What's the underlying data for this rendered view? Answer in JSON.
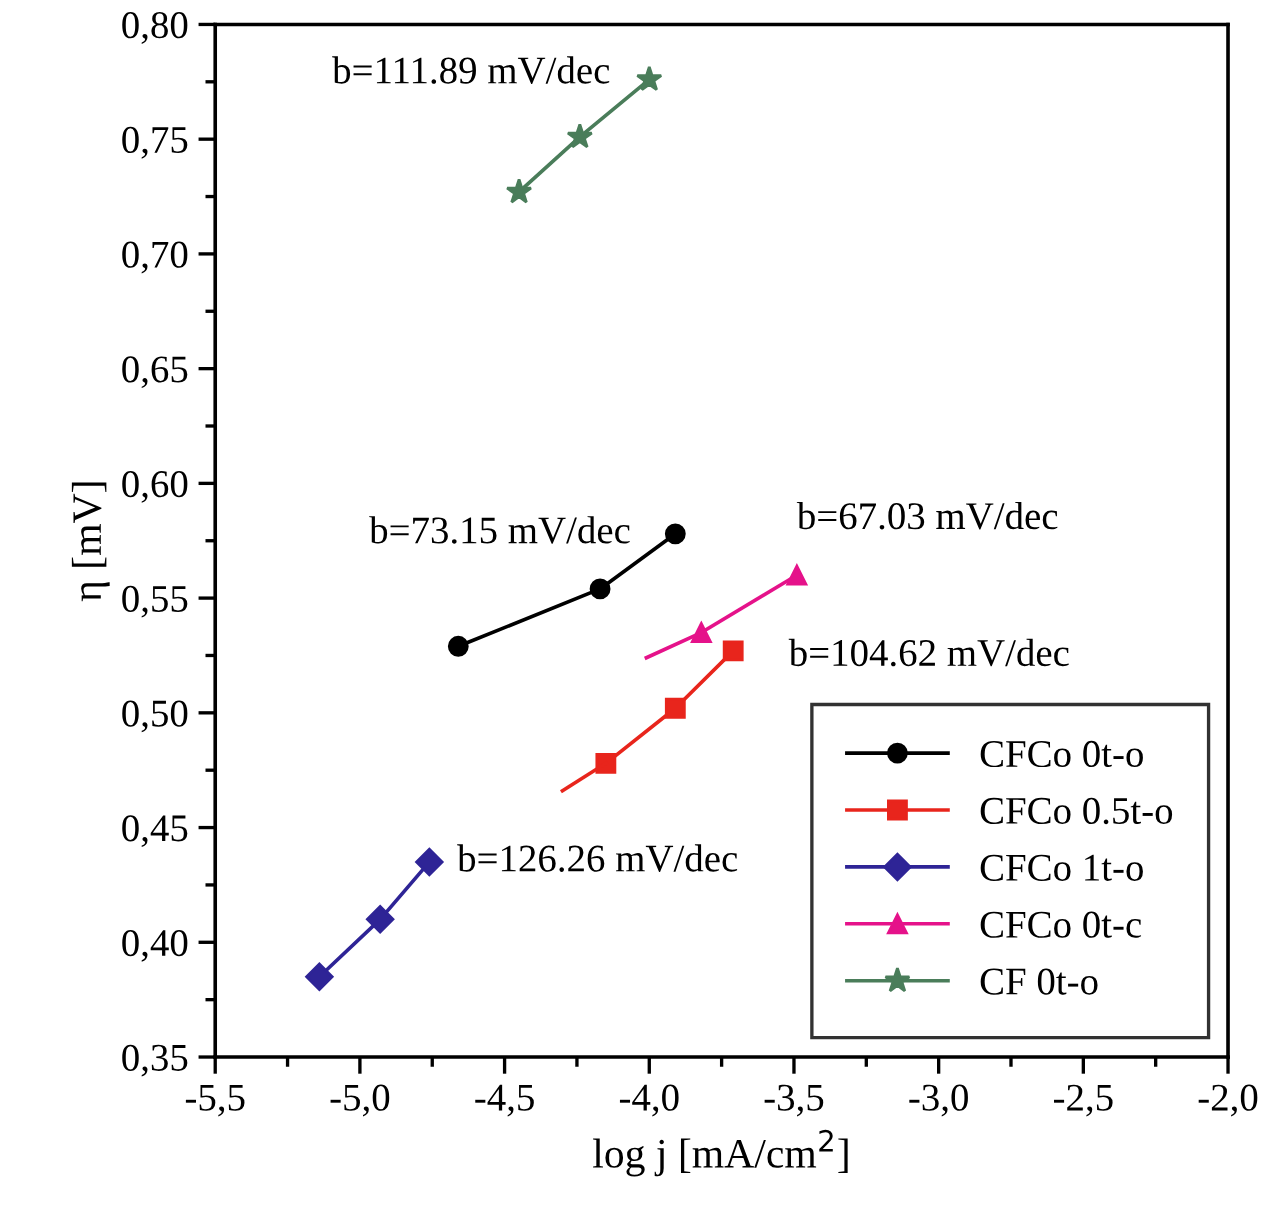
{
  "chart_data": {
    "type": "line",
    "xlabel": "log j [mA/cm$^{2}$]",
    "ylabel": "η [mV]",
    "xlim": [
      -5.5,
      -2.0
    ],
    "ylim": [
      0.35,
      0.8
    ],
    "xticks": [
      {
        "value": -5.5,
        "label": "-5,5"
      },
      {
        "value": -5.0,
        "label": "-5,0"
      },
      {
        "value": -4.5,
        "label": "-4,5"
      },
      {
        "value": -4.0,
        "label": "-4,0"
      },
      {
        "value": -3.5,
        "label": "-3,5"
      },
      {
        "value": -3.0,
        "label": "-3,0"
      },
      {
        "value": -2.5,
        "label": "-2,5"
      },
      {
        "value": -2.0,
        "label": "-2,0"
      }
    ],
    "yticks": [
      {
        "value": 0.35,
        "label": "0,35"
      },
      {
        "value": 0.4,
        "label": "0,40"
      },
      {
        "value": 0.45,
        "label": "0,45"
      },
      {
        "value": 0.5,
        "label": "0,50"
      },
      {
        "value": 0.55,
        "label": "0,55"
      },
      {
        "value": 0.6,
        "label": "0,60"
      },
      {
        "value": 0.65,
        "label": "0,65"
      },
      {
        "value": 0.7,
        "label": "0,70"
      },
      {
        "value": 0.75,
        "label": "0,75"
      },
      {
        "value": 0.8,
        "label": "0,80"
      }
    ],
    "grid": false,
    "legend": "bottom right",
    "series": [
      {
        "name": "CFCo 0t-o",
        "color": "#000000",
        "marker": "circle",
        "x": [
          -4.66,
          -4.17,
          -3.91
        ],
        "values": [
          0.529,
          0.554,
          0.578
        ]
      },
      {
        "name": "CFCo 0.5t-o",
        "color": "#e8251c",
        "marker": "square",
        "x": [
          -4.15,
          -3.91,
          -3.71
        ],
        "values": [
          0.478,
          0.502,
          0.527
        ]
      },
      {
        "name": "CFCo 1t-o",
        "color": "#2e2496",
        "marker": "diamond",
        "x": [
          -5.14,
          -4.93,
          -4.76
        ],
        "values": [
          0.385,
          0.41,
          0.435
        ]
      },
      {
        "name": "CFCo 0t-c",
        "color": "#e5128a",
        "marker": "triangle",
        "x": [
          -3.82,
          -3.49
        ],
        "values": [
          0.535,
          0.56
        ]
      },
      {
        "name": "CF 0t-o",
        "color": "#4a7d5a",
        "marker": "star",
        "x": [
          -4.45,
          -4.24,
          -4.0
        ],
        "values": [
          0.727,
          0.751,
          0.776
        ]
      },
      {
        "type": "line",
        "color": "#e8251c",
        "marker": "none",
        "x": [
          -4.3,
          -4.15
        ],
        "values": [
          0.466,
          0.478
        ]
      },
      {
        "type": "line",
        "color": "#e5128a",
        "marker": "none",
        "x": [
          -4.01,
          -3.82
        ],
        "values": [
          0.524,
          0.535
        ]
      }
    ],
    "annotations": [
      {
        "text": "b=111.89 mV/dec",
        "x": -4.0,
        "y": 0.776
      },
      {
        "text": "b=73.15 mV/dec",
        "x": -3.91,
        "y": 0.578
      },
      {
        "text": "b=67.03 mV/dec",
        "x": -3.49,
        "y": 0.56
      },
      {
        "text": "b=104.62 mV/dec",
        "x": -3.71,
        "y": 0.527
      },
      {
        "text": "b=126.26 mV/dec",
        "x": -4.76,
        "y": 0.435
      }
    ]
  }
}
